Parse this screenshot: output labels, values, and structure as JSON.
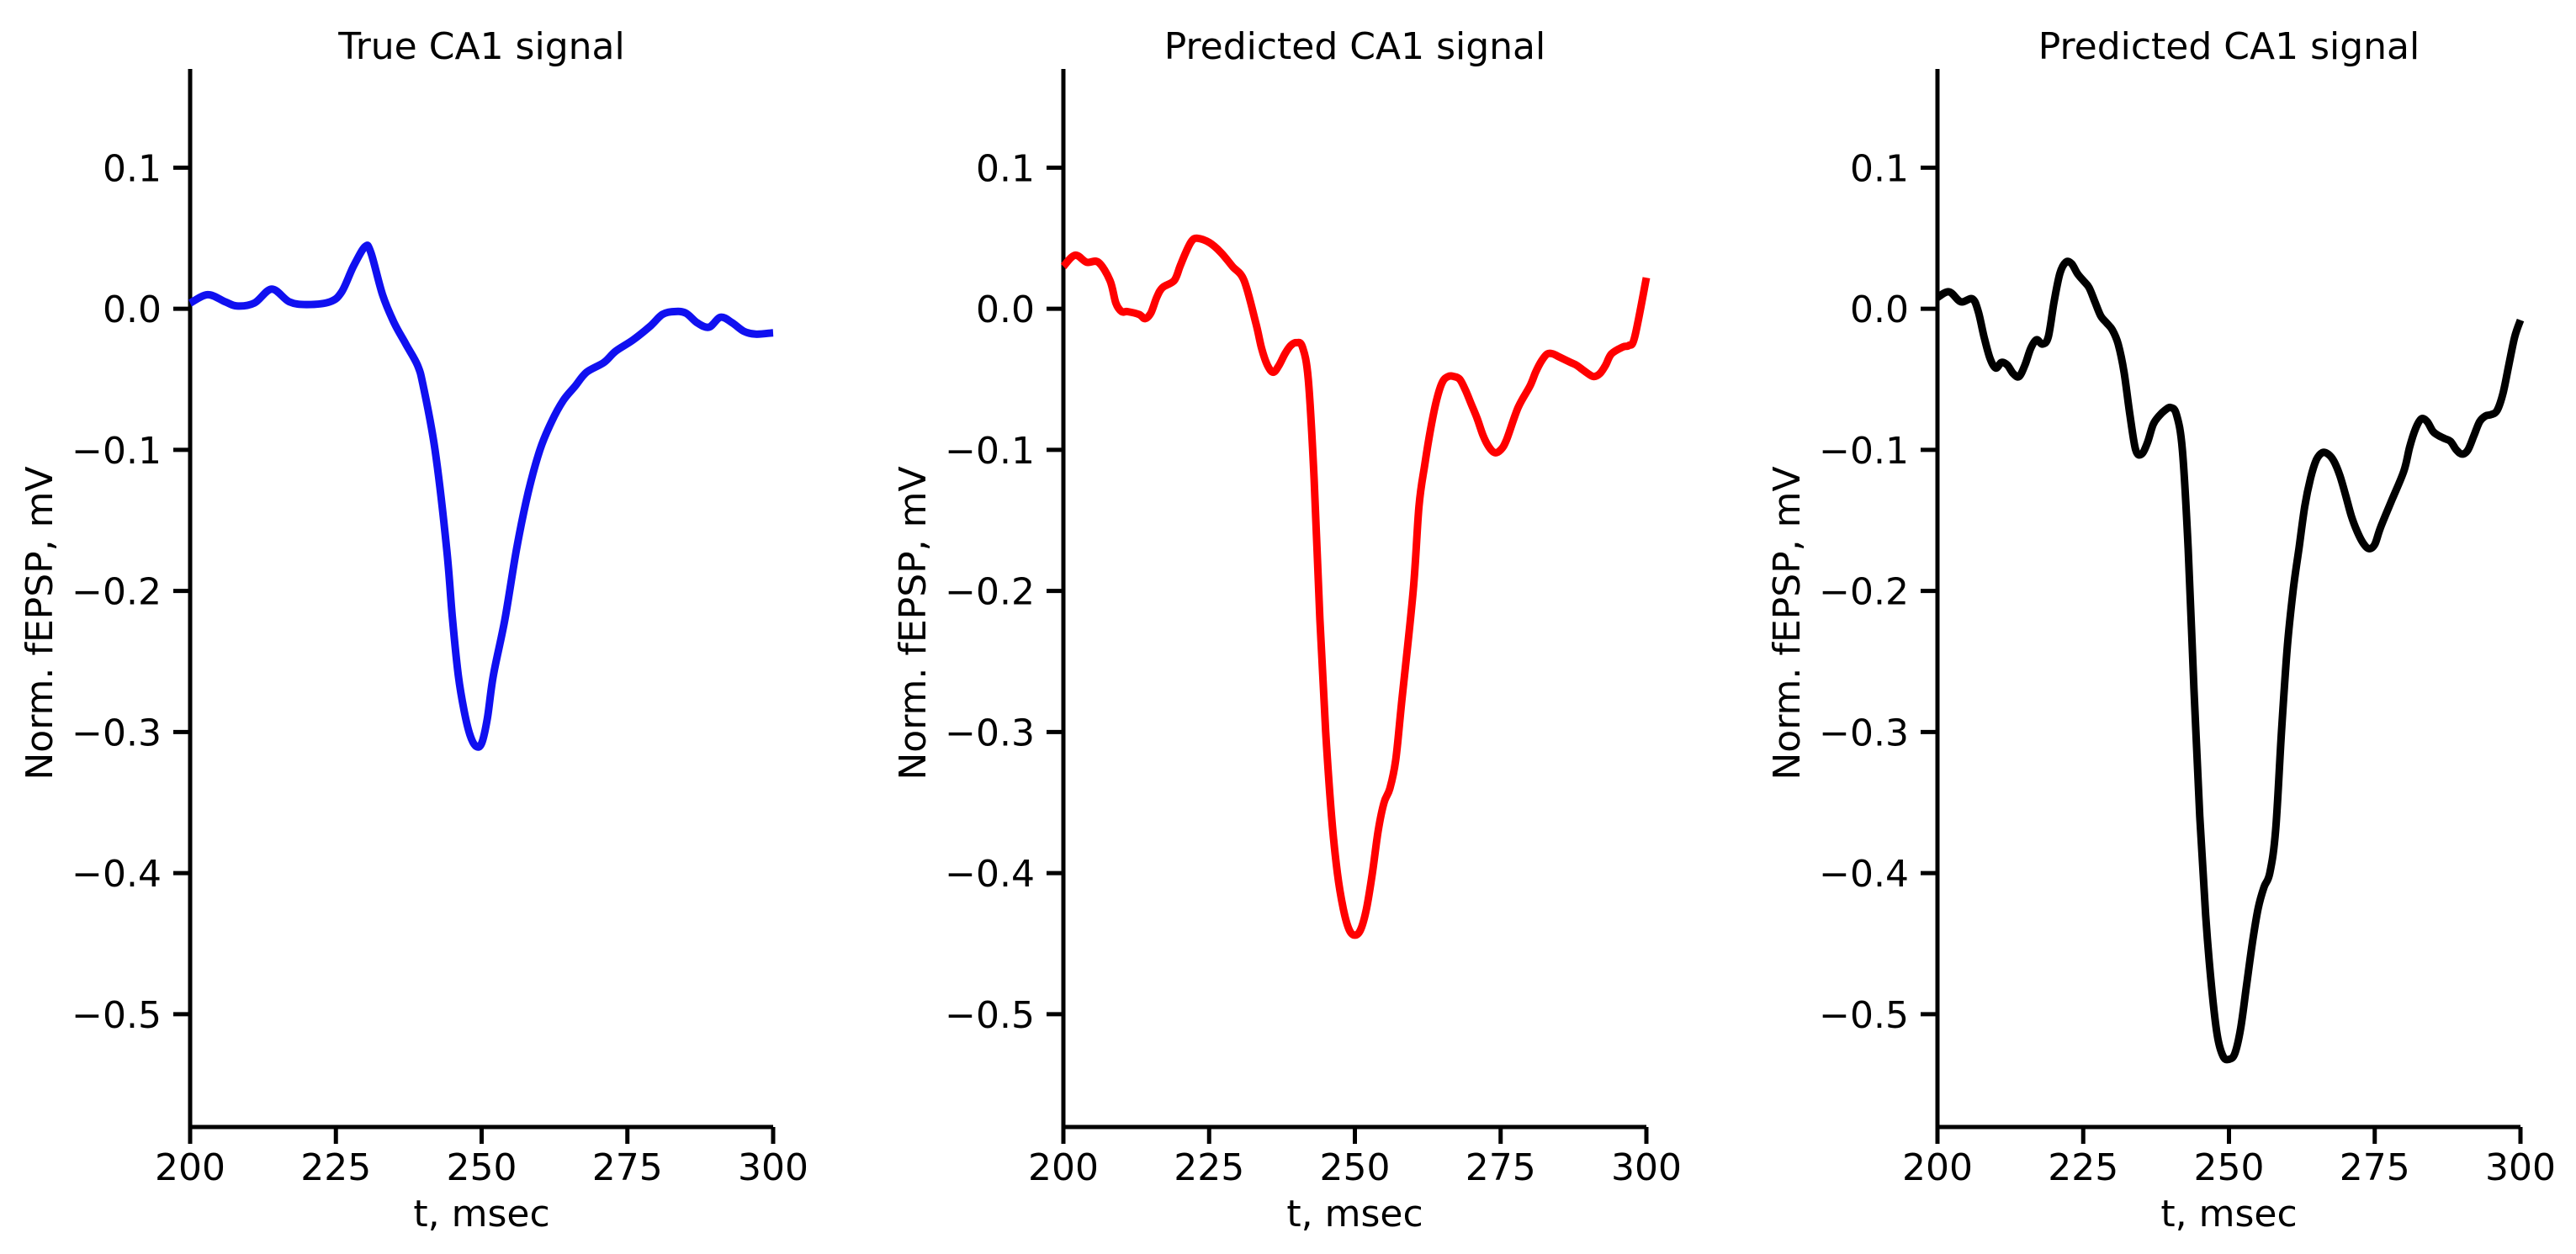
{
  "chart_data": [
    {
      "type": "line",
      "title": "True CA1 signal",
      "xlabel": "t, msec",
      "ylabel": "Norm. fEPSP, mV",
      "xlim": [
        200,
        300
      ],
      "ylim": [
        -0.58,
        0.17
      ],
      "xticks": [
        200,
        225,
        250,
        275,
        300
      ],
      "yticks": [
        0.1,
        0.0,
        -0.1,
        -0.2,
        -0.3,
        -0.4,
        -0.5
      ],
      "xtick_labels": [
        "200",
        "225",
        "250",
        "275",
        "300"
      ],
      "ytick_labels": [
        "0.1",
        "0.0",
        "−0.1",
        "−0.2",
        "−0.3",
        "−0.4",
        "−0.5"
      ],
      "grid": false,
      "color": "#1010f0",
      "series": [
        {
          "x": [
            200,
            203,
            206,
            208,
            211,
            214,
            217,
            220,
            224,
            226,
            228,
            230,
            231,
            233,
            235,
            237,
            239,
            240,
            242,
            244,
            245,
            246,
            247,
            248,
            249,
            250,
            251,
            252,
            254,
            256,
            258,
            260,
            262,
            264,
            266,
            268,
            271,
            273,
            276,
            279,
            281,
            283,
            285,
            287,
            289,
            291,
            293,
            295,
            297,
            300
          ],
          "y": [
            0.004,
            0.01,
            0.005,
            0.002,
            0.004,
            0.014,
            0.005,
            0.003,
            0.005,
            0.012,
            0.03,
            0.044,
            0.04,
            0.01,
            -0.01,
            -0.025,
            -0.04,
            -0.055,
            -0.1,
            -0.17,
            -0.22,
            -0.26,
            -0.285,
            -0.302,
            -0.31,
            -0.308,
            -0.29,
            -0.26,
            -0.22,
            -0.17,
            -0.13,
            -0.1,
            -0.08,
            -0.065,
            -0.055,
            -0.045,
            -0.038,
            -0.03,
            -0.022,
            -0.012,
            -0.004,
            -0.002,
            -0.003,
            -0.01,
            -0.013,
            -0.006,
            -0.01,
            -0.016,
            -0.018,
            -0.017
          ]
        }
      ]
    },
    {
      "type": "line",
      "title": "Predicted CA1 signal",
      "xlabel": "t, msec",
      "ylabel": "Norm. fEPSP, mV",
      "xlim": [
        200,
        300
      ],
      "ylim": [
        -0.58,
        0.17
      ],
      "xticks": [
        200,
        225,
        250,
        275,
        300
      ],
      "yticks": [
        0.1,
        0.0,
        -0.1,
        -0.2,
        -0.3,
        -0.4,
        -0.5
      ],
      "xtick_labels": [
        "200",
        "225",
        "250",
        "275",
        "300"
      ],
      "ytick_labels": [
        "0.1",
        "0.0",
        "−0.1",
        "−0.2",
        "−0.3",
        "−0.4",
        "−0.5"
      ],
      "grid": false,
      "color": "#ff0000",
      "series": [
        {
          "x": [
            200,
            202,
            204,
            206,
            208,
            209,
            210,
            211,
            213,
            214,
            215,
            216,
            217,
            219,
            220,
            221,
            222,
            223,
            225,
            227,
            229,
            231,
            233,
            234,
            235,
            236,
            237,
            238,
            239,
            240,
            241,
            242,
            243,
            244,
            245,
            246,
            247,
            248,
            249,
            250,
            251,
            252,
            253,
            254,
            255,
            256,
            257,
            258,
            260,
            261,
            262,
            263,
            264,
            265,
            266,
            267,
            268,
            269,
            270,
            271,
            272,
            273,
            274,
            275,
            276,
            278,
            280,
            281,
            282,
            283,
            284,
            285,
            287,
            288,
            289,
            290,
            291,
            292,
            293,
            294,
            296,
            297,
            298,
            300
          ],
          "y": [
            0.03,
            0.038,
            0.033,
            0.033,
            0.02,
            0.004,
            -0.002,
            -0.002,
            -0.004,
            -0.007,
            -0.003,
            0.008,
            0.015,
            0.02,
            0.03,
            0.04,
            0.048,
            0.05,
            0.047,
            0.04,
            0.03,
            0.02,
            -0.01,
            -0.028,
            -0.04,
            -0.045,
            -0.04,
            -0.032,
            -0.026,
            -0.024,
            -0.027,
            -0.05,
            -0.12,
            -0.22,
            -0.3,
            -0.36,
            -0.4,
            -0.425,
            -0.44,
            -0.444,
            -0.44,
            -0.425,
            -0.4,
            -0.37,
            -0.35,
            -0.34,
            -0.32,
            -0.28,
            -0.2,
            -0.14,
            -0.11,
            -0.085,
            -0.065,
            -0.052,
            -0.048,
            -0.048,
            -0.05,
            -0.058,
            -0.068,
            -0.078,
            -0.09,
            -0.098,
            -0.102,
            -0.1,
            -0.093,
            -0.07,
            -0.055,
            -0.045,
            -0.037,
            -0.032,
            -0.032,
            -0.034,
            -0.038,
            -0.04,
            -0.043,
            -0.046,
            -0.048,
            -0.046,
            -0.04,
            -0.032,
            -0.027,
            -0.026,
            -0.02,
            0.022
          ]
        }
      ]
    },
    {
      "type": "line",
      "title": "Predicted CA1 signal",
      "xlabel": "t, msec",
      "ylabel": "Norm. fEPSP, mV",
      "xlim": [
        200,
        300
      ],
      "ylim": [
        -0.58,
        0.17
      ],
      "xticks": [
        200,
        225,
        250,
        275,
        300
      ],
      "yticks": [
        0.1,
        0.0,
        -0.1,
        -0.2,
        -0.3,
        -0.4,
        -0.5
      ],
      "xtick_labels": [
        "200",
        "225",
        "250",
        "275",
        "300"
      ],
      "ytick_labels": [
        "0.1",
        "0.0",
        "−0.1",
        "−0.2",
        "−0.3",
        "−0.4",
        "−0.5"
      ],
      "grid": false,
      "color": "#000000",
      "series": [
        {
          "x": [
            200,
            202,
            204,
            206,
            207,
            208,
            209,
            210,
            211,
            212,
            213,
            214,
            215,
            216,
            217,
            218,
            219,
            220,
            221,
            222,
            223,
            224,
            225,
            226,
            227,
            228,
            229,
            230,
            231,
            232,
            233,
            234,
            235,
            236,
            237,
            238,
            239,
            240,
            241,
            242,
            243,
            244,
            245,
            246,
            247,
            248,
            249,
            250,
            251,
            252,
            253,
            254,
            255,
            256,
            257,
            258,
            259,
            260,
            261,
            262,
            263,
            264,
            265,
            266,
            267,
            268,
            269,
            270,
            271,
            272,
            273,
            274,
            275,
            276,
            278,
            280,
            281,
            282,
            283,
            284,
            285,
            286,
            287,
            288,
            289,
            290,
            291,
            292,
            293,
            294,
            295,
            296,
            297,
            298,
            299,
            300
          ],
          "y": [
            0.008,
            0.012,
            0.005,
            0.007,
            -0.002,
            -0.02,
            -0.035,
            -0.042,
            -0.038,
            -0.04,
            -0.046,
            -0.048,
            -0.04,
            -0.028,
            -0.022,
            -0.025,
            -0.02,
            0.005,
            0.025,
            0.033,
            0.032,
            0.025,
            0.02,
            0.015,
            0.005,
            -0.005,
            -0.01,
            -0.015,
            -0.025,
            -0.045,
            -0.075,
            -0.1,
            -0.103,
            -0.095,
            -0.082,
            -0.076,
            -0.072,
            -0.07,
            -0.075,
            -0.1,
            -0.17,
            -0.27,
            -0.36,
            -0.43,
            -0.48,
            -0.515,
            -0.53,
            -0.532,
            -0.528,
            -0.51,
            -0.48,
            -0.45,
            -0.425,
            -0.41,
            -0.4,
            -0.37,
            -0.3,
            -0.24,
            -0.2,
            -0.17,
            -0.14,
            -0.12,
            -0.107,
            -0.102,
            -0.103,
            -0.108,
            -0.118,
            -0.132,
            -0.147,
            -0.158,
            -0.166,
            -0.17,
            -0.167,
            -0.155,
            -0.135,
            -0.115,
            -0.098,
            -0.085,
            -0.078,
            -0.08,
            -0.087,
            -0.09,
            -0.092,
            -0.094,
            -0.1,
            -0.103,
            -0.1,
            -0.09,
            -0.08,
            -0.076,
            -0.075,
            -0.072,
            -0.06,
            -0.04,
            -0.02,
            -0.008
          ]
        }
      ]
    }
  ]
}
